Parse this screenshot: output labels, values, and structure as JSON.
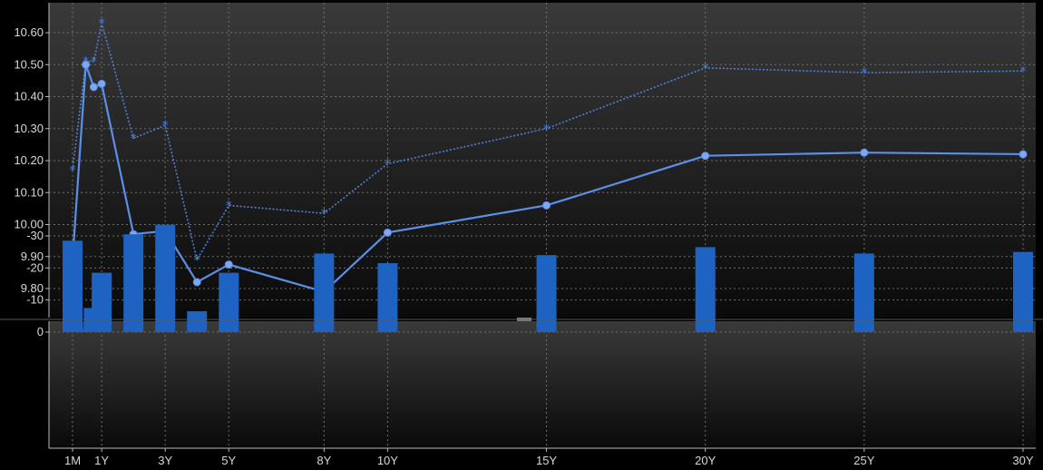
{
  "chart_data": [
    {
      "type": "line",
      "x": [
        0.083,
        0.5,
        0.75,
        1,
        2,
        3,
        4,
        5,
        8,
        10,
        15,
        20,
        25,
        30
      ],
      "xticks": [
        {
          "x": 0.083,
          "label": "1M"
        },
        {
          "x": 1,
          "label": "1Y"
        },
        {
          "x": 3,
          "label": "3Y"
        },
        {
          "x": 5,
          "label": "5Y"
        },
        {
          "x": 8,
          "label": "8Y"
        },
        {
          "x": 10,
          "label": "10Y"
        },
        {
          "x": 15,
          "label": "15Y"
        },
        {
          "x": 20,
          "label": "20Y"
        },
        {
          "x": 25,
          "label": "25Y"
        },
        {
          "x": 30,
          "label": "30Y"
        }
      ],
      "yticks": [
        "9.80",
        "9.90",
        "10.00",
        "10.10",
        "10.20",
        "10.30",
        "10.40",
        "10.50",
        "10.60"
      ],
      "ylim": [
        9.71,
        10.68
      ],
      "grid": true,
      "series": [
        {
          "style": "solid-circles",
          "color": "#5b8fe8",
          "values": [
            9.89,
            10.5,
            10.43,
            10.44,
            9.97,
            9.98,
            9.82,
            9.875,
            9.79,
            9.975,
            10.06,
            10.215,
            10.225,
            10.22
          ]
        },
        {
          "style": "dotted-stars",
          "color": "#4f7fd6",
          "values": [
            10.17,
            10.51,
            10.51,
            10.63,
            10.27,
            10.31,
            9.89,
            10.06,
            10.035,
            10.19,
            10.3,
            10.49,
            10.475,
            10.48
          ]
        }
      ]
    },
    {
      "type": "bar",
      "x": [
        0.083,
        0.5,
        0.75,
        1,
        2,
        3,
        4,
        5,
        8,
        10,
        15,
        20,
        25,
        30
      ],
      "values": [
        -28.5,
        -1,
        -7.5,
        -18.5,
        -30.5,
        -33.5,
        -6.5,
        -18.5,
        -24.5,
        -21.5,
        -24,
        -26.5,
        -24.5,
        -25
      ],
      "yticks": [
        "0",
        "-10",
        "-20",
        "-30"
      ],
      "ylim": [
        -36,
        2
      ],
      "color": "#1f63c2",
      "grid": true
    }
  ]
}
